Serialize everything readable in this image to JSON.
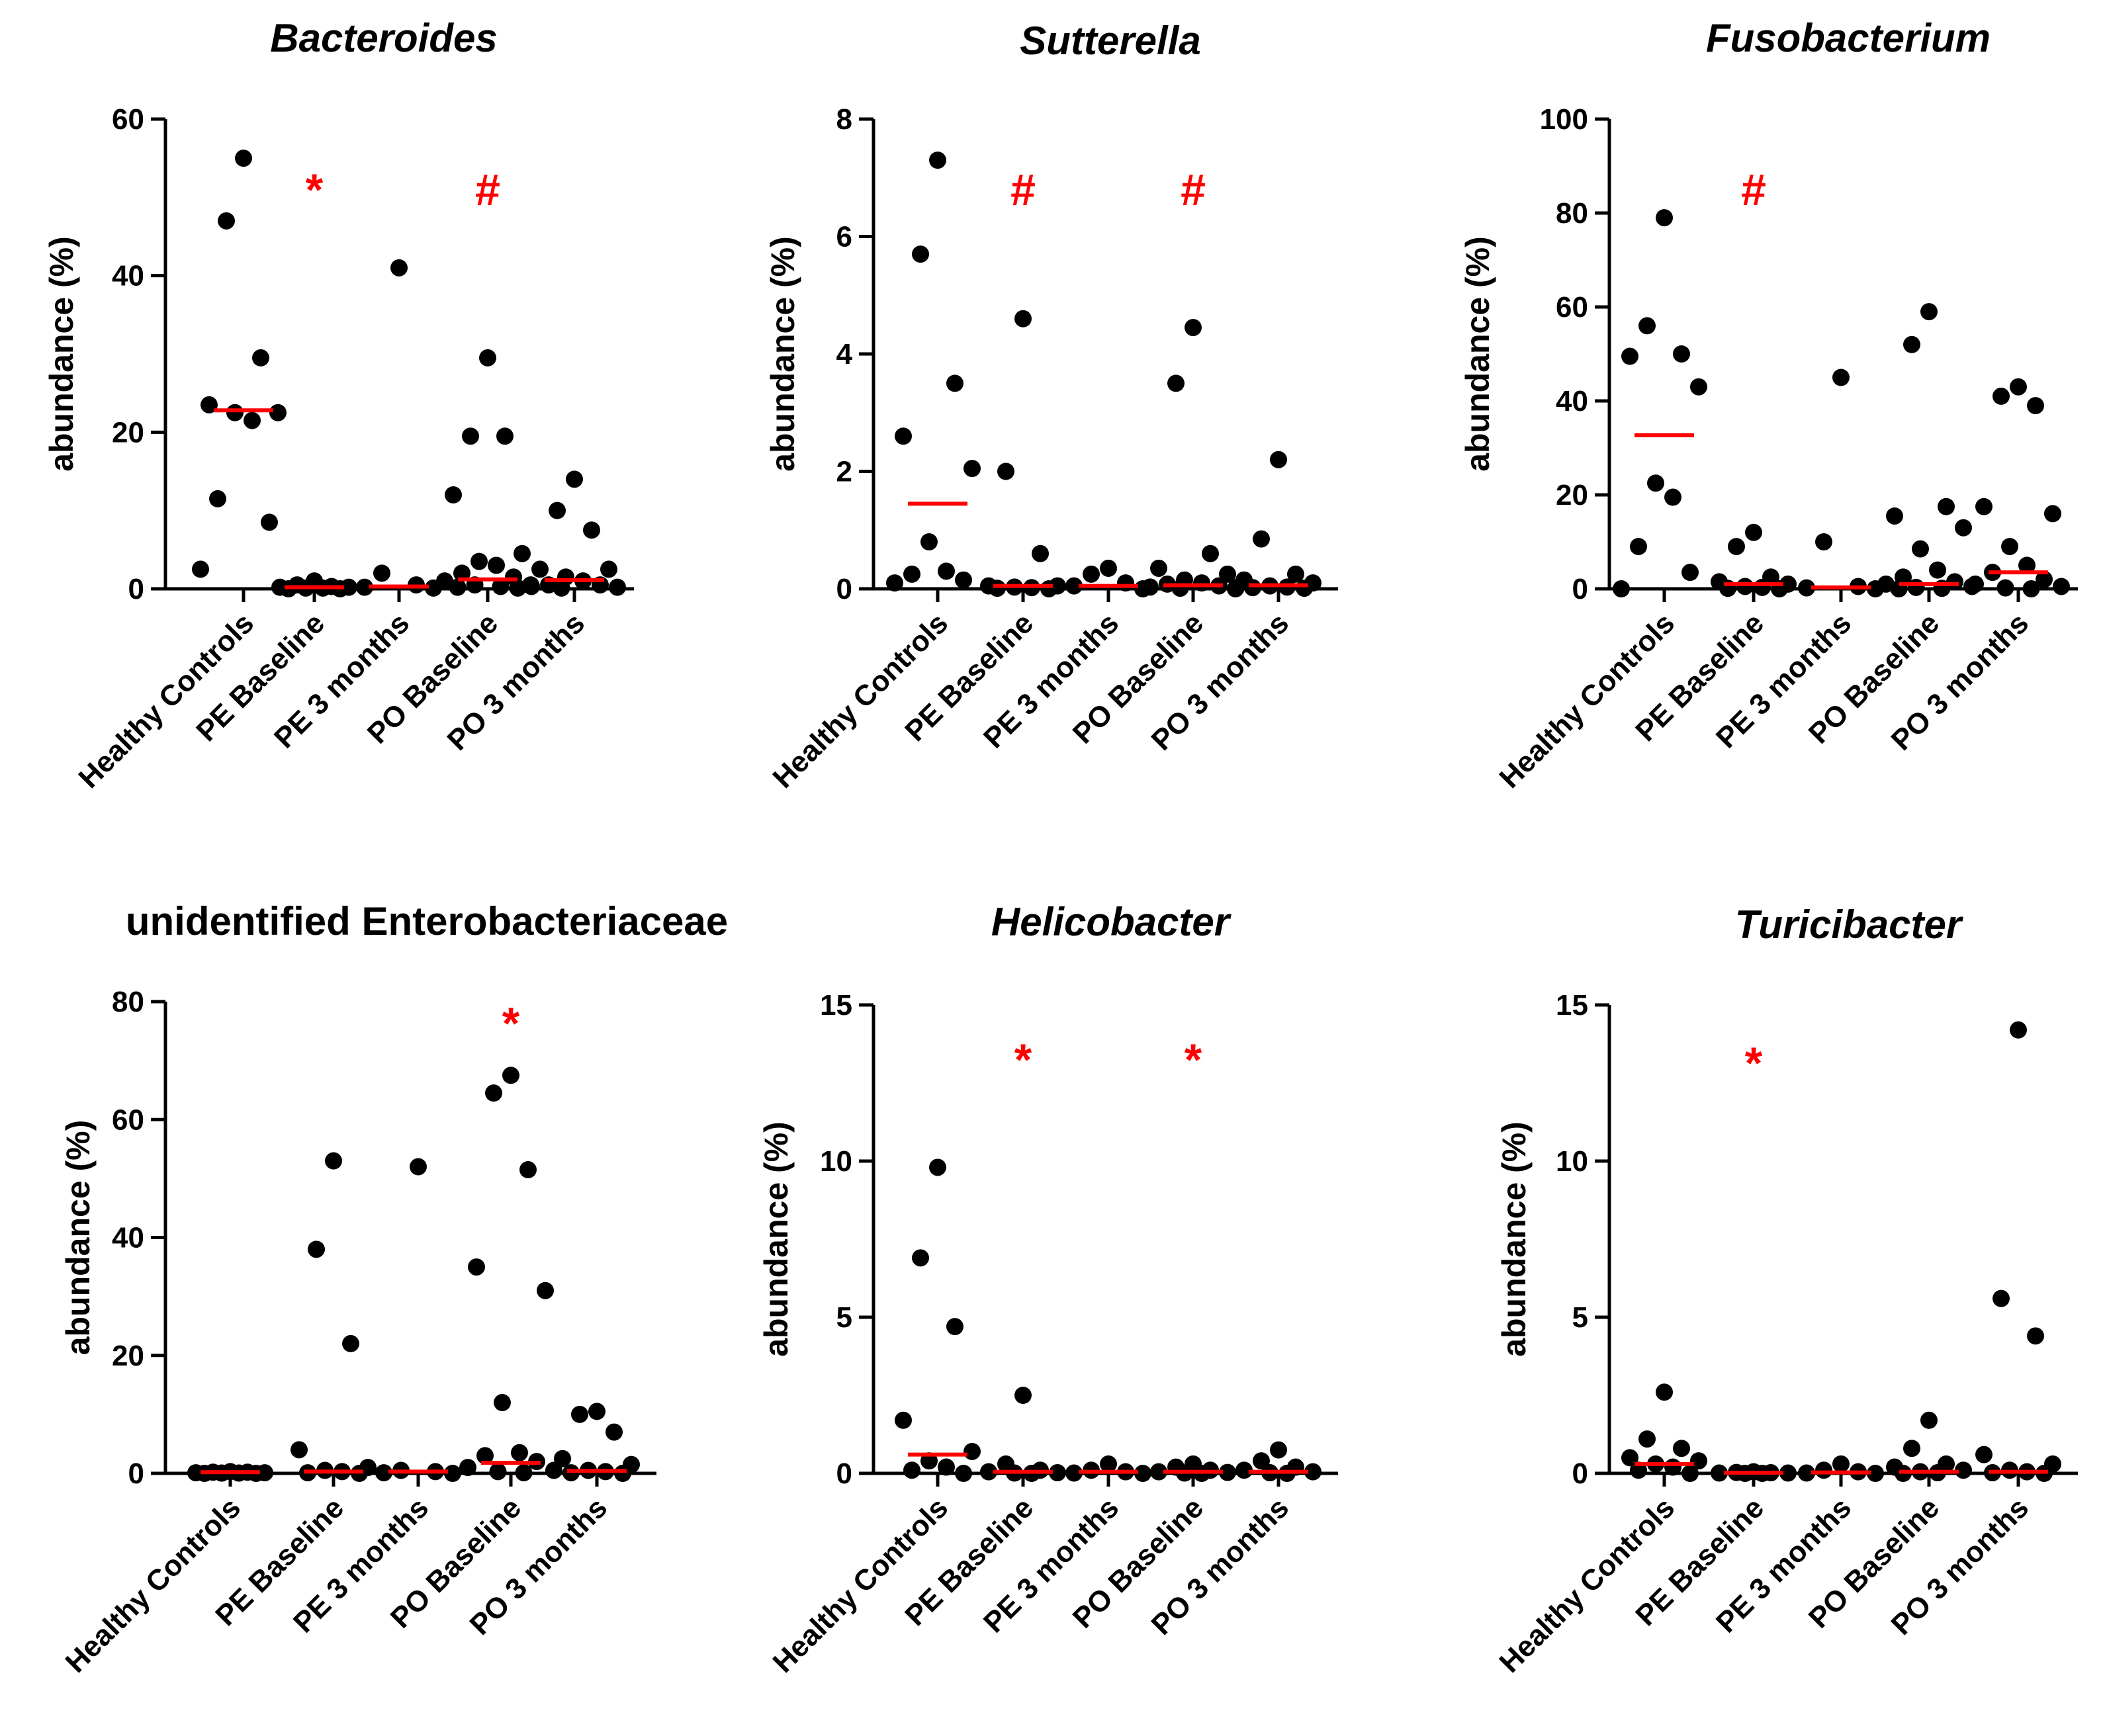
{
  "figure": {
    "colors": {
      "points": "#000000",
      "median": "#ff0000",
      "significance": "#ff0000",
      "axis": "#000000"
    }
  },
  "chart_data": [
    {
      "type": "scatter",
      "title": "Bacteroides",
      "title_italic": true,
      "ylabel": "abundance (%)",
      "ylim": [
        0,
        60
      ],
      "yticks": [
        0,
        20,
        40,
        60
      ],
      "categories": [
        "Healthy Controls",
        "PE Baseline",
        "PE 3 months",
        "PO Baseline",
        "PO 3 months"
      ],
      "points": [
        [
          55,
          47,
          29.5,
          23.5,
          22.5,
          22.5,
          21.5,
          11.5,
          8.5,
          2.5
        ],
        [
          1,
          0.5,
          0.3,
          0.2,
          0.2,
          0.1,
          0.1,
          0,
          0
        ],
        [
          41,
          2,
          0.5,
          0.2,
          0.1
        ],
        [
          29.5,
          19.5,
          19.5,
          12,
          4.5,
          3.5,
          3,
          2,
          1.5,
          1,
          0.5,
          0.5,
          0.3,
          0.2,
          0.1
        ],
        [
          14,
          10,
          7.5,
          2.5,
          2.5,
          1.5,
          1,
          0.5,
          0.5,
          0.3,
          0.2,
          0.1
        ]
      ],
      "medians": [
        22.8,
        0.2,
        0.3,
        1.2,
        1.1
      ],
      "significance": [
        "",
        "*",
        "",
        "#",
        ""
      ]
    },
    {
      "type": "scatter",
      "title": "Sutterella",
      "title_italic": true,
      "ylabel": "abundance (%)",
      "ylim": [
        0,
        8
      ],
      "yticks": [
        0,
        2,
        4,
        6,
        8
      ],
      "categories": [
        "Healthy Controls",
        "PE Baseline",
        "PE 3 months",
        "PO Baseline",
        "PO 3 months"
      ],
      "points": [
        [
          7.3,
          5.7,
          3.5,
          2.6,
          2.05,
          0.8,
          0.3,
          0.25,
          0.15,
          0.1
        ],
        [
          4.6,
          2,
          0.6,
          0.05,
          0.05,
          0.03,
          0.02,
          0.01,
          0
        ],
        [
          0.35,
          0.25,
          0.1,
          0.05,
          0
        ],
        [
          4.45,
          3.5,
          0.6,
          0.35,
          0.25,
          0.15,
          0.1,
          0.08,
          0.05,
          0.03,
          0.02,
          0.01
        ],
        [
          2.2,
          0.85,
          0.25,
          0.15,
          0.1,
          0.05,
          0.03,
          0.02,
          0.01,
          0
        ]
      ],
      "medians": [
        1.45,
        0.05,
        0.05,
        0.06,
        0.06
      ],
      "significance": [
        "",
        "#",
        "",
        "#",
        ""
      ]
    },
    {
      "type": "scatter",
      "title": "Fusobacterium",
      "title_italic": true,
      "ylabel": "abundance (%)",
      "ylim": [
        0,
        100
      ],
      "yticks": [
        0,
        20,
        40,
        60,
        80,
        100
      ],
      "categories": [
        "Healthy Controls",
        "PE Baseline",
        "PE 3 months",
        "PO Baseline",
        "PO 3 months"
      ],
      "points": [
        [
          79,
          56,
          50,
          49.5,
          43,
          22.5,
          19.5,
          9,
          3.5,
          0
        ],
        [
          12,
          9,
          2.5,
          1.5,
          1,
          0.5,
          0.3,
          0.1,
          0
        ],
        [
          45,
          10,
          0.5,
          0.2,
          0
        ],
        [
          59,
          52,
          17.5,
          15.5,
          13,
          8.5,
          4,
          2.5,
          1.5,
          1,
          0.5,
          0.3,
          0.1,
          0
        ],
        [
          43,
          41,
          39,
          17.5,
          16,
          9,
          5,
          3.5,
          2,
          1,
          0.5,
          0.2,
          0
        ]
      ],
      "medians": [
        32.7,
        1,
        0.3,
        1,
        3.5
      ],
      "significance": [
        "",
        "#",
        "",
        "",
        ""
      ]
    },
    {
      "type": "scatter",
      "title": "unidentified Enterobacteriaceae",
      "title_italic": false,
      "ylabel": "abundance (%)",
      "ylim": [
        0,
        80
      ],
      "yticks": [
        0,
        20,
        40,
        60,
        80
      ],
      "categories": [
        "Healthy Controls",
        "PE Baseline",
        "PE 3 months",
        "PO Baseline",
        "PO 3 months"
      ],
      "points": [
        [
          0.3,
          0.2,
          0.2,
          0.1,
          0.1,
          0.05,
          0.05,
          0,
          0
        ],
        [
          53,
          38,
          22,
          4,
          1,
          0.5,
          0.3,
          0.1,
          0
        ],
        [
          52,
          0.5,
          0.3,
          0.1,
          0
        ],
        [
          67.5,
          64.5,
          51.5,
          35,
          31,
          12,
          3.5,
          3,
          2,
          1,
          0.5,
          0.3,
          0.1
        ],
        [
          10.5,
          10,
          7,
          2.5,
          1.5,
          0.5,
          0.3,
          0.1,
          0
        ]
      ],
      "medians": [
        0.2,
        0.3,
        0.3,
        1.8,
        0.4
      ],
      "significance": [
        "",
        "",
        "",
        "*",
        ""
      ]
    },
    {
      "type": "scatter",
      "title": "Helicobacter",
      "title_italic": true,
      "ylabel": "abundance (%)",
      "ylim": [
        0,
        15
      ],
      "yticks": [
        0,
        5,
        10,
        15
      ],
      "categories": [
        "Healthy Controls",
        "PE Baseline",
        "PE 3 months",
        "PO Baseline",
        "PO 3 months"
      ],
      "points": [
        [
          9.8,
          6.9,
          4.7,
          1.7,
          0.7,
          0.4,
          0.2,
          0.1,
          0
        ],
        [
          2.5,
          0.3,
          0.1,
          0.05,
          0.02,
          0.01,
          0
        ],
        [
          0.3,
          0.1,
          0.05,
          0.01,
          0
        ],
        [
          0.3,
          0.2,
          0.1,
          0.05,
          0.03,
          0.01,
          0
        ],
        [
          0.75,
          0.4,
          0.2,
          0.1,
          0.05,
          0.02,
          0
        ]
      ],
      "medians": [
        0.6,
        0.05,
        0.05,
        0.05,
        0.05
      ],
      "significance": [
        "",
        "*",
        "",
        "*",
        ""
      ]
    },
    {
      "type": "scatter",
      "title": "Turicibacter",
      "title_italic": true,
      "ylabel": "abundance (%)",
      "ylim": [
        0,
        15
      ],
      "yticks": [
        0,
        5,
        10,
        15
      ],
      "categories": [
        "Healthy Controls",
        "PE Baseline",
        "PE 3 months",
        "PO Baseline",
        "PO 3 months"
      ],
      "points": [
        [
          2.6,
          1.1,
          0.8,
          0.5,
          0.4,
          0.3,
          0.2,
          0.1,
          0
        ],
        [
          0.05,
          0.03,
          0.02,
          0.01,
          0.01,
          0,
          0
        ],
        [
          0.3,
          0.1,
          0.05,
          0.01,
          0
        ],
        [
          1.7,
          0.8,
          0.3,
          0.2,
          0.1,
          0.05,
          0.02,
          0
        ],
        [
          14.2,
          5.6,
          4.4,
          0.6,
          0.3,
          0.1,
          0.05,
          0.02,
          0
        ]
      ],
      "medians": [
        0.3,
        0.02,
        0.03,
        0.05,
        0.05
      ],
      "significance": [
        "",
        "*",
        "",
        "",
        ""
      ]
    }
  ]
}
